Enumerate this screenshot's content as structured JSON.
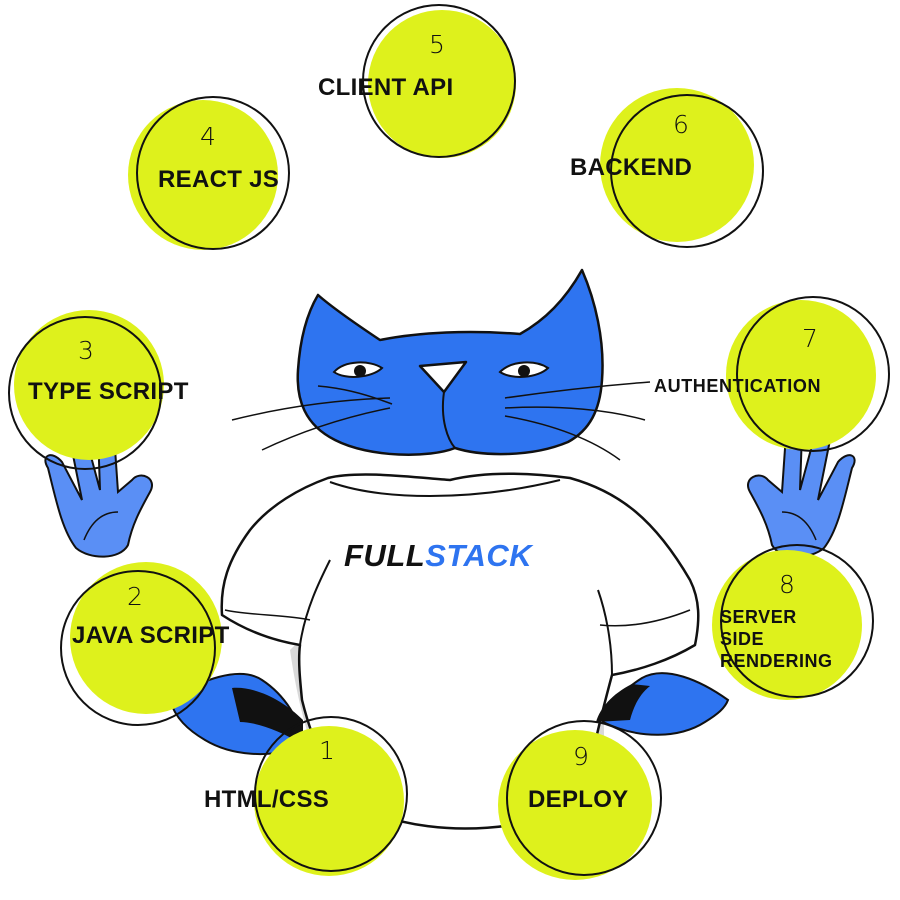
{
  "brand": {
    "part1": "FULL",
    "part2": "STACK"
  },
  "steps": [
    {
      "number": "1",
      "label": "HTML/CSS"
    },
    {
      "number": "2",
      "label": "JAVA SCRIPT"
    },
    {
      "number": "3",
      "label": "TYPE SCRIPT"
    },
    {
      "number": "4",
      "label": "REACT JS"
    },
    {
      "number": "5",
      "label": "CLIENT API"
    },
    {
      "number": "6",
      "label": "BACKEND"
    },
    {
      "number": "7",
      "label": "AUTHENTICATION"
    },
    {
      "number": "8",
      "label": "SERVER SIDE RENDERING",
      "lines": [
        "SERVER",
        "SIDE",
        "RENDERING"
      ]
    },
    {
      "number": "9",
      "label": "DEPLOY"
    }
  ],
  "colors": {
    "accent": "#DEF11C",
    "cat_blue": "#2E74F0",
    "outline": "#111111",
    "shirt_shadow": "#D9D9D9"
  }
}
